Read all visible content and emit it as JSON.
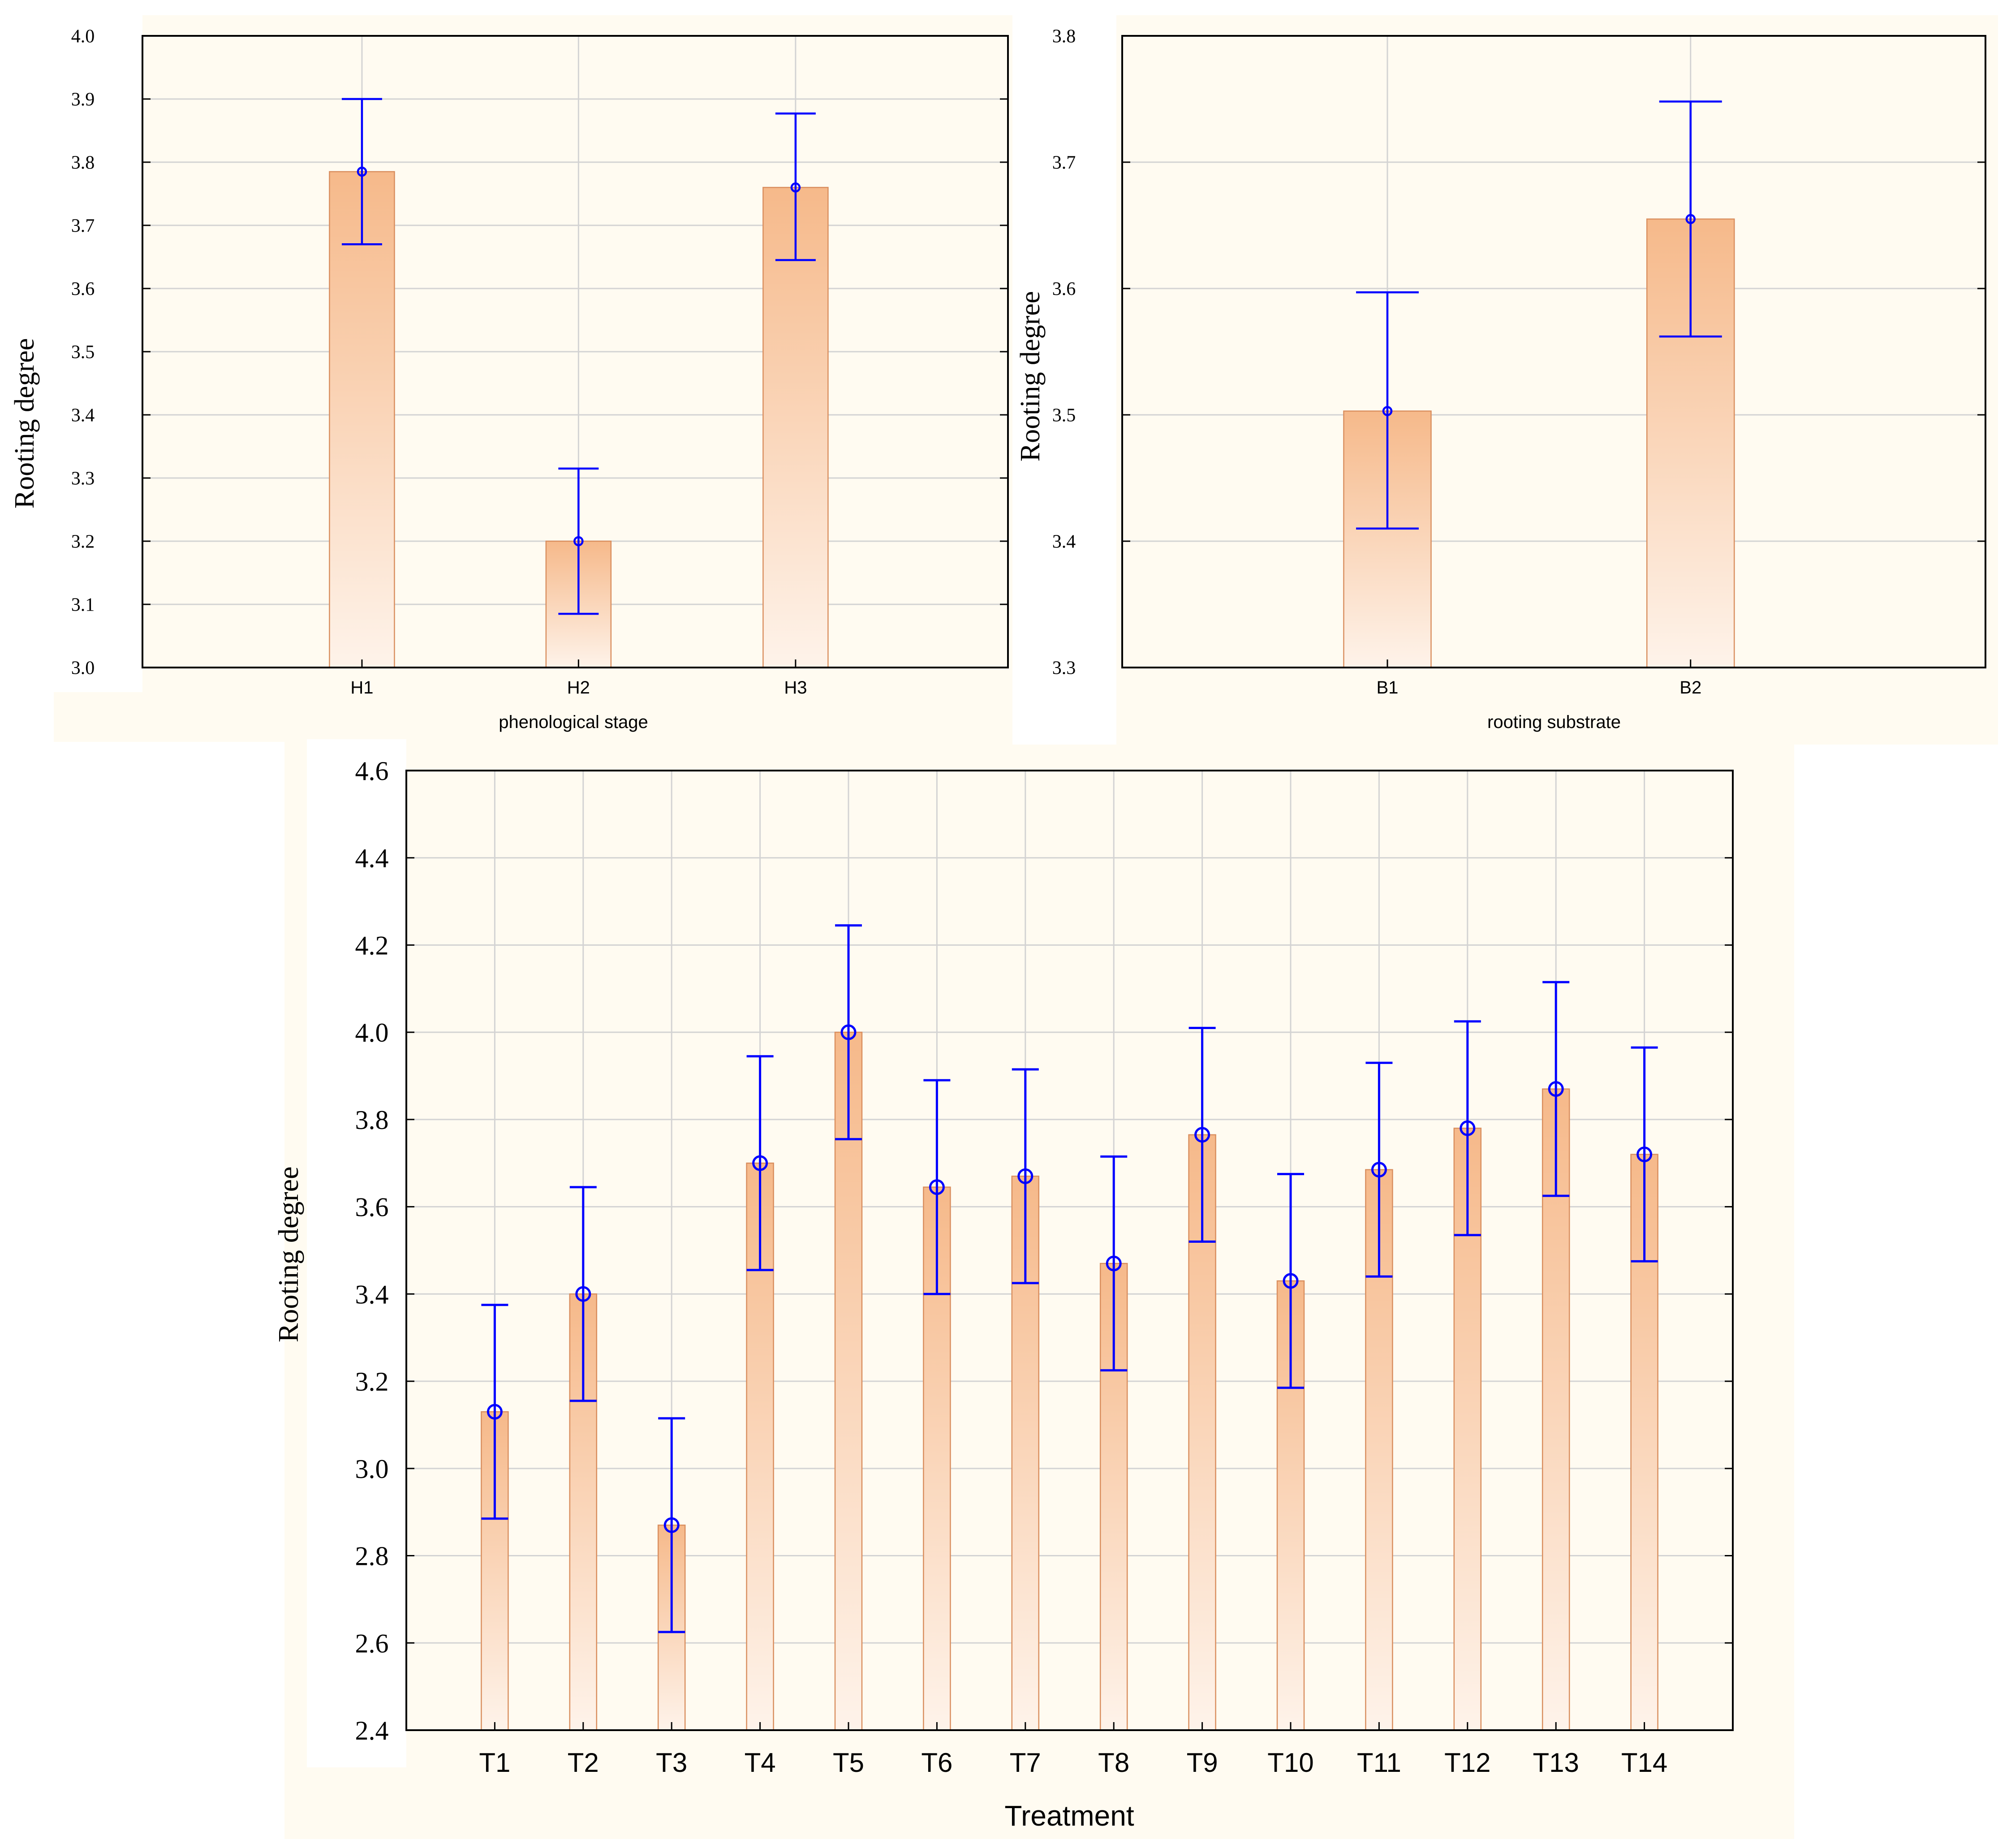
{
  "colors": {
    "bar_top": "#F6B98A",
    "bar_bottom": "#FEF3EA",
    "bar_edge": "#D98E5E",
    "error_bar": "#0000FF",
    "grid": "#D3D3D3",
    "axis": "#000000",
    "panel_bg": "#FFFBF1"
  },
  "chart_data": [
    {
      "type": "bar",
      "title": "",
      "xlabel": "phenological stage",
      "ylabel": "Rooting degree",
      "categories": [
        "H1",
        "H2",
        "H3"
      ],
      "values": [
        3.785,
        3.2,
        3.76
      ],
      "error_lower": [
        3.67,
        3.085,
        3.645
      ],
      "error_upper": [
        3.9,
        3.315,
        3.877
      ],
      "ylim": [
        3.0,
        4.0
      ],
      "yticks": [
        "3.0",
        "3.1",
        "3.2",
        "3.3",
        "3.4",
        "3.5",
        "3.6",
        "3.7",
        "3.8",
        "3.9",
        "4.0"
      ],
      "grid": true
    },
    {
      "type": "bar",
      "title": "",
      "xlabel": "rooting substrate",
      "ylabel": "Rooting degree",
      "categories": [
        "B1",
        "B2"
      ],
      "values": [
        3.503,
        3.655
      ],
      "error_lower": [
        3.41,
        3.562
      ],
      "error_upper": [
        3.597,
        3.748
      ],
      "ylim": [
        3.3,
        3.8
      ],
      "yticks": [
        "3.3",
        "3.4",
        "3.5",
        "3.6",
        "3.7",
        "3.8"
      ],
      "grid": true
    },
    {
      "type": "bar",
      "title": "",
      "xlabel": "Treatment",
      "ylabel": "Rooting degree",
      "categories": [
        "T1",
        "T2",
        "T3",
        "T4",
        "T5",
        "T6",
        "T7",
        "T8",
        "T9",
        "T10",
        "T11",
        "T12",
        "T13",
        "T14"
      ],
      "values": [
        3.13,
        3.4,
        2.87,
        3.7,
        4.0,
        3.645,
        3.67,
        3.47,
        3.765,
        3.43,
        3.685,
        3.78,
        3.87,
        3.72
      ],
      "error_lower": [
        2.885,
        3.155,
        2.625,
        3.455,
        3.755,
        3.4,
        3.425,
        3.225,
        3.52,
        3.185,
        3.44,
        3.535,
        3.625,
        3.475
      ],
      "error_upper": [
        3.375,
        3.645,
        3.115,
        3.945,
        4.245,
        3.89,
        3.915,
        3.715,
        4.01,
        3.675,
        3.93,
        4.025,
        4.115,
        3.965
      ],
      "ylim": [
        2.4,
        4.6
      ],
      "yticks": [
        "2.4",
        "2.6",
        "2.8",
        "3.0",
        "3.2",
        "3.4",
        "3.6",
        "3.8",
        "4.0",
        "4.2",
        "4.4",
        "4.6"
      ],
      "grid": true
    }
  ]
}
